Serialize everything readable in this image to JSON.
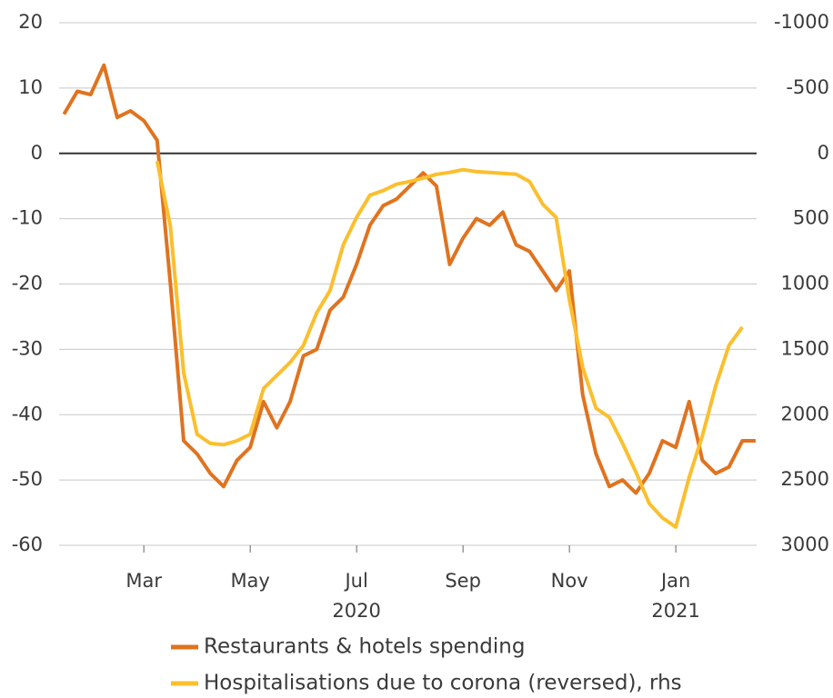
{
  "chart_data": {
    "type": "line",
    "categories": [
      null,
      null,
      null,
      null,
      null,
      null,
      "Mar",
      null,
      null,
      null,
      null,
      null,
      null,
      null,
      "May",
      null,
      null,
      null,
      null,
      null,
      null,
      null,
      "Jul",
      null,
      null,
      null,
      null,
      null,
      null,
      null,
      "Sep",
      null,
      null,
      null,
      null,
      null,
      null,
      null,
      "Nov",
      null,
      null,
      null,
      null,
      null,
      null,
      null,
      "Jan",
      null,
      null,
      null,
      null,
      null,
      null
    ],
    "year_categories": [
      null,
      null,
      null,
      null,
      null,
      null,
      null,
      null,
      null,
      null,
      null,
      null,
      null,
      null,
      null,
      null,
      null,
      null,
      null,
      null,
      null,
      null,
      "2020",
      null,
      null,
      null,
      null,
      null,
      null,
      null,
      null,
      null,
      null,
      null,
      null,
      null,
      null,
      null,
      null,
      null,
      null,
      null,
      null,
      null,
      null,
      null,
      "2021",
      null,
      null,
      null,
      null,
      null,
      null
    ],
    "series": [
      {
        "name": "Restaurants & hotels spending",
        "color": "#e0731f",
        "axis": "y",
        "values": [
          6,
          9.5,
          9,
          13.5,
          5.5,
          6.5,
          5,
          2,
          -20,
          -44,
          -46,
          -49,
          -51,
          -47,
          -45,
          -38,
          -42,
          -38,
          -31,
          -30,
          -24,
          -22,
          -17,
          -11,
          -8,
          -7,
          -5,
          -3,
          -5,
          -17,
          -13,
          -10,
          -11,
          -9,
          -14,
          -15,
          -18,
          -21,
          -18,
          -37,
          -46,
          -51,
          -50,
          -52,
          -49,
          -44,
          -45,
          -38,
          -47,
          -49,
          -48,
          -44,
          -44
        ]
      },
      {
        "name": "Hospitalisations due to corona (reversed), rhs",
        "color": "#fbbf2e",
        "axis": "y2",
        "values": [
          null,
          null,
          null,
          null,
          null,
          null,
          null,
          60,
          560,
          1680,
          2150,
          2220,
          2230,
          2200,
          2150,
          1800,
          1700,
          1600,
          1470,
          1220,
          1050,
          700,
          490,
          320,
          285,
          236,
          215,
          190,
          160,
          146,
          125,
          140,
          146,
          153,
          160,
          215,
          390,
          490,
          1120,
          1640,
          1950,
          2020,
          2220,
          2440,
          2680,
          2790,
          2860,
          2480,
          2160,
          1780,
          1470,
          1330,
          null
        ]
      }
    ],
    "ylim": [
      -60,
      20
    ],
    "yticks": [
      -60,
      -50,
      -40,
      -30,
      -20,
      -10,
      0,
      10,
      20
    ],
    "y2lim": [
      3000,
      -1000
    ],
    "y2ticks": [
      -1000,
      -500,
      0,
      500,
      1000,
      1500,
      2000,
      2500,
      3000
    ],
    "grid": true
  }
}
